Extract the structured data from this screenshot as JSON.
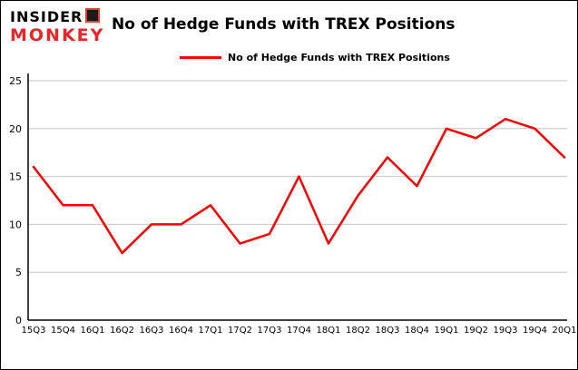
{
  "header": {
    "logo_line1": "INSIDER",
    "logo_line2": "MONKEY",
    "title": "No of Hedge Funds with TREX Positions"
  },
  "legend": {
    "label": "No of Hedge Funds with TREX Positions",
    "color": "#ff0000"
  },
  "chart_data": {
    "type": "line",
    "title": "No of Hedge Funds with TREX Positions",
    "categories": [
      "15Q3",
      "15Q4",
      "16Q1",
      "16Q2",
      "16Q3",
      "16Q4",
      "17Q1",
      "17Q2",
      "17Q3",
      "17Q4",
      "18Q1",
      "18Q2",
      "18Q3",
      "18Q4",
      "19Q1",
      "19Q2",
      "19Q3",
      "19Q4",
      "20Q1"
    ],
    "series": [
      {
        "name": "No of Hedge Funds with TREX Positions",
        "color": "#ff0000",
        "values": [
          16,
          12,
          12,
          7,
          10,
          10,
          12,
          8,
          9,
          15,
          8,
          13,
          17,
          14,
          20,
          19,
          21,
          20,
          17
        ]
      }
    ],
    "xlabel": "",
    "ylabel": "",
    "ylim": [
      0,
      25
    ],
    "yticks": [
      0,
      5,
      10,
      15,
      20,
      25
    ],
    "grid": true,
    "grid_color": "#c6c6c6",
    "legend_position": "top"
  }
}
